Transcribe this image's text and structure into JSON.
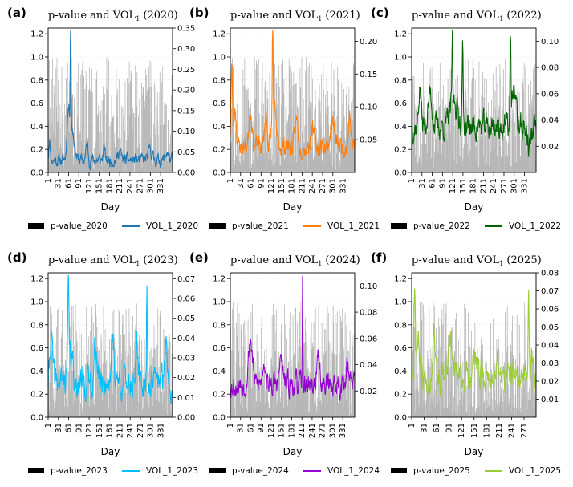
{
  "figure": {
    "x_label": "Day",
    "left_ylim": [
      0,
      1.25
    ],
    "left_yticks": [
      0.0,
      0.2,
      0.4,
      0.6,
      0.8,
      1.0,
      1.2
    ],
    "left_ytick_labels": [
      "0.0",
      "0.2",
      "0.4",
      "0.6",
      "0.8",
      "1.0",
      "1.2"
    ],
    "pvalue_color": "#aaaaaa"
  },
  "chart_data": [
    {
      "type": "line",
      "panel_label": "(a)",
      "title_prefix": "p-value and VOL",
      "title_sub": "1",
      "title_suffix": " (2020)",
      "series_color": "#1f77b4",
      "days": 366,
      "x_ticks": [
        1,
        31,
        61,
        91,
        121,
        151,
        181,
        211,
        241,
        271,
        301,
        331
      ],
      "x_tick_labels": [
        "1",
        "31",
        "61",
        "91",
        "121",
        "151",
        "181",
        "211",
        "241",
        "271",
        "301",
        "331"
      ],
      "right_ylim": [
        0,
        0.35
      ],
      "right_yticks": [
        0.0,
        0.05,
        0.1,
        0.15,
        0.2,
        0.25,
        0.3,
        0.35
      ],
      "right_ytick_labels": [
        "0.00",
        "0.05",
        "0.10",
        "0.15",
        "0.20",
        "0.25",
        "0.30",
        "0.35"
      ],
      "vol_profile": {
        "base": 0.03,
        "noise": 0.012,
        "seed": 11,
        "peaks": [
          [
            5,
            0.05,
            3
          ],
          [
            60,
            0.1,
            5
          ],
          [
            67,
            0.32,
            1.5
          ],
          [
            70,
            0.08,
            10
          ],
          [
            115,
            0.04,
            4
          ],
          [
            165,
            0.025,
            4
          ],
          [
            210,
            0.025,
            5
          ],
          [
            300,
            0.025,
            8
          ],
          [
            350,
            0.02,
            6
          ]
        ]
      },
      "legend": [
        "p-value_2020",
        "VOL_1_2020"
      ]
    },
    {
      "type": "line",
      "panel_label": "(b)",
      "title_prefix": "p-value and VOL",
      "title_sub": "1",
      "title_suffix": " (2021)",
      "series_color": "#ff7f0e",
      "days": 365,
      "x_ticks": [
        1,
        31,
        61,
        91,
        121,
        151,
        181,
        211,
        241,
        271,
        301,
        331
      ],
      "x_tick_labels": [
        "1",
        "31",
        "61",
        "91",
        "121",
        "151",
        "181",
        "211",
        "241",
        "271",
        "301",
        "331"
      ],
      "right_ylim": [
        0,
        0.22
      ],
      "right_yticks": [
        0.05,
        0.1,
        0.15,
        0.2
      ],
      "right_ytick_labels": [
        "0.05",
        "0.10",
        "0.15",
        "0.20"
      ],
      "vol_profile": {
        "base": 0.04,
        "noise": 0.012,
        "seed": 23,
        "peaks": [
          [
            5,
            0.12,
            3
          ],
          [
            15,
            0.06,
            5
          ],
          [
            60,
            0.06,
            6
          ],
          [
            105,
            0.05,
            5
          ],
          [
            125,
            0.17,
            1.5
          ],
          [
            128,
            0.06,
            8
          ],
          [
            195,
            0.04,
            6
          ],
          [
            240,
            0.03,
            6
          ],
          [
            300,
            0.04,
            8
          ],
          [
            350,
            0.05,
            4
          ]
        ]
      },
      "legend": [
        "p-value_2021",
        "VOL_1_2021"
      ]
    },
    {
      "type": "line",
      "panel_label": "(c)",
      "title_prefix": "p-value and VOL",
      "title_sub": "1",
      "title_suffix": " (2022)",
      "series_color": "#006400",
      "days": 365,
      "x_ticks": [
        1,
        31,
        61,
        91,
        121,
        151,
        181,
        211,
        241,
        271,
        301,
        331
      ],
      "x_tick_labels": [
        "1",
        "31",
        "61",
        "91",
        "121",
        "151",
        "181",
        "211",
        "241",
        "271",
        "301",
        "331"
      ],
      "right_ylim": [
        0,
        0.11
      ],
      "right_yticks": [
        0.02,
        0.04,
        0.06,
        0.08,
        0.1
      ],
      "right_ytick_labels": [
        "0.02",
        "0.04",
        "0.06",
        "0.08",
        "0.10"
      ],
      "vol_profile": {
        "base": 0.035,
        "noise": 0.008,
        "seed": 37,
        "peaks": [
          [
            25,
            0.03,
            5
          ],
          [
            55,
            0.025,
            8
          ],
          [
            120,
            0.06,
            1.5
          ],
          [
            150,
            0.06,
            2
          ],
          [
            125,
            0.02,
            15
          ],
          [
            290,
            0.06,
            2
          ],
          [
            300,
            0.03,
            8
          ],
          [
            345,
            -0.015,
            8
          ]
        ]
      },
      "legend": [
        "p-value_2022",
        "VOL_1_2022"
      ]
    },
    {
      "type": "line",
      "panel_label": "(d)",
      "title_prefix": "p-value and VOL",
      "title_sub": "1",
      "title_suffix": " (2023)",
      "series_color": "#00bfff",
      "days": 365,
      "x_ticks": [
        1,
        31,
        61,
        91,
        121,
        151,
        181,
        211,
        241,
        271,
        301,
        331
      ],
      "x_tick_labels": [
        "1",
        "31",
        "61",
        "91",
        "121",
        "151",
        "181",
        "211",
        "241",
        "271",
        "301",
        "331"
      ],
      "right_ylim": [
        0,
        0.073
      ],
      "right_yticks": [
        0.0,
        0.01,
        0.02,
        0.03,
        0.04,
        0.05,
        0.06,
        0.07
      ],
      "right_ytick_labels": [
        "0.00",
        "0.01",
        "0.02",
        "0.03",
        "0.04",
        "0.05",
        "0.06",
        "0.07"
      ],
      "vol_profile": {
        "base": 0.018,
        "noise": 0.006,
        "seed": 41,
        "peaks": [
          [
            10,
            0.025,
            5
          ],
          [
            60,
            0.04,
            2
          ],
          [
            65,
            0.015,
            10
          ],
          [
            140,
            0.02,
            5
          ],
          [
            190,
            0.02,
            6
          ],
          [
            260,
            0.015,
            5
          ],
          [
            290,
            0.05,
            1.5
          ],
          [
            345,
            0.02,
            5
          ]
        ]
      },
      "legend": [
        "p-value_2023",
        "VOL_1_2023"
      ]
    },
    {
      "type": "line",
      "panel_label": "(e)",
      "title_prefix": "p-value and VOL",
      "title_sub": "1",
      "title_suffix": " (2024)",
      "series_color": "#9400d3",
      "days": 366,
      "x_ticks": [
        1,
        31,
        61,
        91,
        121,
        151,
        181,
        211,
        241,
        271,
        301,
        331
      ],
      "x_tick_labels": [
        "1",
        "31",
        "61",
        "91",
        "121",
        "151",
        "181",
        "211",
        "241",
        "271",
        "301",
        "331"
      ],
      "right_ylim": [
        0,
        0.11
      ],
      "right_yticks": [
        0.02,
        0.04,
        0.06,
        0.08,
        0.1
      ],
      "right_ytick_labels": [
        "0.02",
        "0.04",
        "0.06",
        "0.08",
        "0.10"
      ],
      "vol_profile": {
        "base": 0.025,
        "noise": 0.007,
        "seed": 53,
        "peaks": [
          [
            60,
            0.035,
            8
          ],
          [
            100,
            0.02,
            6
          ],
          [
            150,
            0.02,
            6
          ],
          [
            213,
            0.075,
            1.2
          ],
          [
            260,
            0.02,
            6
          ],
          [
            345,
            0.02,
            5
          ]
        ]
      },
      "legend": [
        "p-value_2024",
        "VOL_1_2024"
      ]
    },
    {
      "type": "line",
      "panel_label": "(f)",
      "title_prefix": "p-value and VOL",
      "title_sub": "1",
      "title_suffix": " (2025)",
      "series_color": "#9acd32",
      "days": 300,
      "x_ticks": [
        1,
        31,
        61,
        91,
        121,
        151,
        181,
        211,
        241,
        271
      ],
      "x_tick_labels": [
        "1",
        "31",
        "61",
        "91",
        "121",
        "151",
        "181",
        "211",
        "241",
        "271"
      ],
      "right_ylim": [
        0,
        0.08
      ],
      "right_yticks": [
        0.01,
        0.02,
        0.03,
        0.04,
        0.05,
        0.06,
        0.07,
        0.08
      ],
      "right_ytick_labels": [
        "0.01",
        "0.02",
        "0.03",
        "0.04",
        "0.05",
        "0.06",
        "0.07",
        "0.08"
      ],
      "vol_profile": {
        "base": 0.022,
        "noise": 0.007,
        "seed": 67,
        "peaks": [
          [
            8,
            0.05,
            2
          ],
          [
            15,
            0.02,
            8
          ],
          [
            55,
            0.03,
            5
          ],
          [
            95,
            0.015,
            8
          ],
          [
            150,
            0.01,
            8
          ],
          [
            205,
            0.008,
            6
          ],
          [
            282,
            0.05,
            1.5
          ],
          [
            290,
            0.01,
            6
          ]
        ]
      },
      "legend": [
        "p-value_2025",
        "VOL_1_2025"
      ]
    }
  ]
}
